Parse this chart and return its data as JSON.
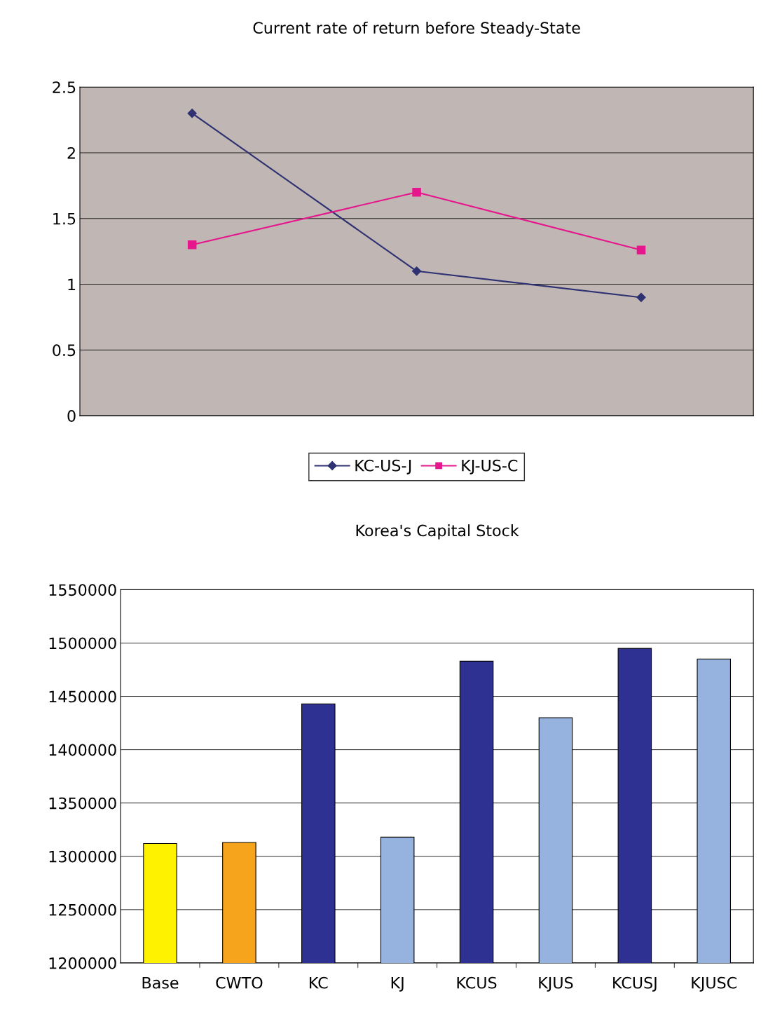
{
  "chart_data": [
    {
      "type": "line",
      "title": "Current rate of return before Steady-State",
      "categories": [
        null,
        null,
        null
      ],
      "ylim": [
        0,
        2.5
      ],
      "yticks": [
        0,
        0.5,
        1,
        1.5,
        2,
        2.5
      ],
      "grid": "y",
      "legend": "bottom",
      "tick_labels": "y",
      "series": [
        {
          "name": "KC-US-J",
          "color": "#2e3172",
          "marker": "diamond",
          "values": [
            2.3,
            1.1,
            0.9
          ]
        },
        {
          "name": "KJ-US-C",
          "color": "#e6168c",
          "marker": "square",
          "values": [
            1.3,
            1.7,
            1.26
          ]
        }
      ]
    },
    {
      "type": "bar",
      "title": "Korea's Capital Stock",
      "categories": [
        "Base",
        "CWTO",
        "KC",
        "KJ",
        "KCUS",
        "KJUS",
        "KCUSJ",
        "KJUSC"
      ],
      "values": [
        1312000,
        1313000,
        1443000,
        1318000,
        1483000,
        1430000,
        1495000,
        1485000
      ],
      "colors": [
        "#fff200",
        "#f7a41d",
        "#2e3192",
        "#95b3de",
        "#2e3192",
        "#95b3de",
        "#2e3192",
        "#95b3de"
      ],
      "ylim": [
        1200000,
        1550000
      ],
      "yticks": [
        1200000,
        1250000,
        1300000,
        1350000,
        1400000,
        1450000,
        1500000,
        1550000
      ],
      "grid": "y"
    }
  ]
}
